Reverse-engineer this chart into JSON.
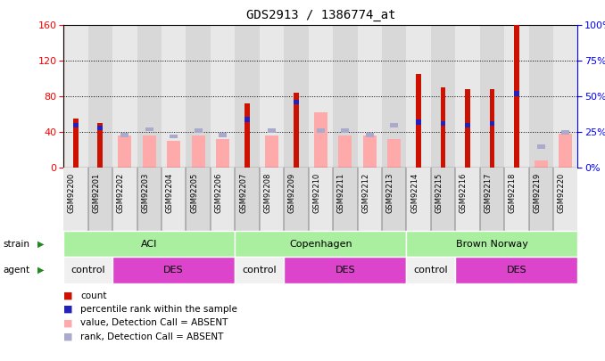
{
  "title": "GDS2913 / 1386774_at",
  "samples": [
    "GSM92200",
    "GSM92201",
    "GSM92202",
    "GSM92203",
    "GSM92204",
    "GSM92205",
    "GSM92206",
    "GSM92207",
    "GSM92208",
    "GSM92209",
    "GSM92210",
    "GSM92211",
    "GSM92212",
    "GSM92213",
    "GSM92214",
    "GSM92215",
    "GSM92216",
    "GSM92217",
    "GSM92218",
    "GSM92219",
    "GSM92220"
  ],
  "count": [
    55,
    50,
    null,
    null,
    null,
    null,
    null,
    72,
    null,
    84,
    null,
    null,
    null,
    null,
    105,
    90,
    88,
    88,
    160,
    null,
    null
  ],
  "percentile_rank": [
    30,
    28,
    null,
    null,
    null,
    null,
    null,
    34,
    null,
    46,
    null,
    null,
    null,
    null,
    32,
    31,
    30,
    31,
    52,
    null,
    null
  ],
  "value_absent": [
    null,
    null,
    36,
    36,
    30,
    36,
    32,
    null,
    36,
    null,
    62,
    36,
    36,
    32,
    null,
    null,
    null,
    null,
    null,
    8,
    38
  ],
  "rank_absent": [
    null,
    null,
    23,
    27,
    22,
    26,
    23,
    null,
    26,
    null,
    26,
    26,
    23,
    30,
    null,
    null,
    null,
    null,
    null,
    15,
    25
  ],
  "ylim_left": [
    0,
    160
  ],
  "ylim_right": [
    0,
    100
  ],
  "yticks_left": [
    0,
    40,
    80,
    120,
    160
  ],
  "yticks_right": [
    0,
    25,
    50,
    75,
    100
  ],
  "strain_groups": [
    {
      "label": "ACI",
      "start": 0,
      "end": 6
    },
    {
      "label": "Copenhagen",
      "start": 7,
      "end": 13
    },
    {
      "label": "Brown Norway",
      "start": 14,
      "end": 20
    }
  ],
  "agent_groups": [
    {
      "label": "control",
      "start": 0,
      "end": 1
    },
    {
      "label": "DES",
      "start": 2,
      "end": 6
    },
    {
      "label": "control",
      "start": 7,
      "end": 8
    },
    {
      "label": "DES",
      "start": 9,
      "end": 13
    },
    {
      "label": "control",
      "start": 14,
      "end": 15
    },
    {
      "label": "DES",
      "start": 16,
      "end": 20
    }
  ],
  "color_count": "#cc1100",
  "color_rank": "#2222bb",
  "color_value_absent": "#ffaaaa",
  "color_rank_absent": "#aaaacc",
  "strain_color": "#aaeea0",
  "control_color": "#f0f0f0",
  "des_color": "#dd44cc",
  "bar_width": 0.5,
  "title_fontsize": 10,
  "tick_fontsize": 8,
  "label_fontsize": 6
}
